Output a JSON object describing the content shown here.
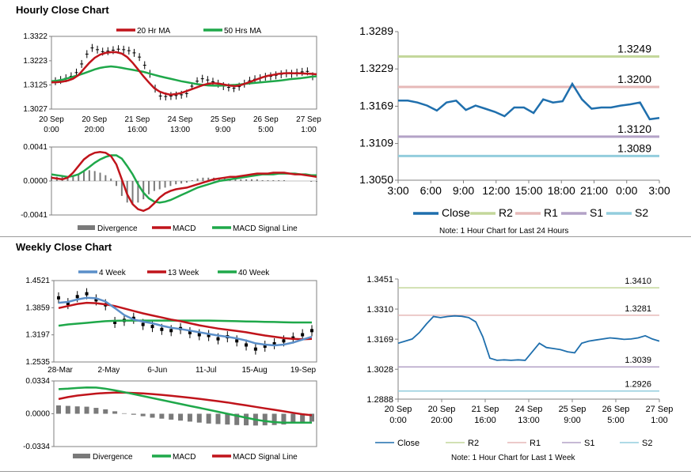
{
  "hourly": {
    "title": "Hourly Close Chart",
    "price": {
      "yticks": [
        "1.3322",
        "1.3223",
        "1.3125",
        "1.3027"
      ],
      "ymin": 1.3027,
      "ymax": 1.3322,
      "xticks": [
        [
          "20 Sep",
          "0:00"
        ],
        [
          "20 Sep",
          "20:00"
        ],
        [
          "21 Sep",
          "16:00"
        ],
        [
          "24 Sep",
          "13:00"
        ],
        [
          "25 Sep",
          "9:00"
        ],
        [
          "26 Sep",
          "5:00"
        ],
        [
          "27 Sep",
          "1:00"
        ]
      ],
      "legend": [
        "20 Hr MA",
        "50 Hrs MA"
      ],
      "colors": {
        "ma20": "#c0141b",
        "ma50": "#1fa84a",
        "candle": "#000000"
      },
      "close": [
        1.314,
        1.3145,
        1.3152,
        1.316,
        1.3175,
        1.321,
        1.325,
        1.3275,
        1.3268,
        1.326,
        1.3262,
        1.3266,
        1.327,
        1.3268,
        1.3264,
        1.3255,
        1.3238,
        1.3205,
        1.317,
        1.311,
        1.308,
        1.3078,
        1.308,
        1.3082,
        1.3085,
        1.309,
        1.312,
        1.314,
        1.315,
        1.3145,
        1.3138,
        1.313,
        1.312,
        1.3115,
        1.3112,
        1.3118,
        1.313,
        1.3142,
        1.3148,
        1.3152,
        1.3158,
        1.316,
        1.3164,
        1.3168,
        1.3172,
        1.317,
        1.3175,
        1.3178,
        1.318,
        1.316
      ],
      "ma20": [
        1.3135,
        1.3136,
        1.3138,
        1.3142,
        1.315,
        1.3165,
        1.319,
        1.3215,
        1.3235,
        1.3248,
        1.3255,
        1.3258,
        1.3258,
        1.3252,
        1.3238,
        1.3215,
        1.3188,
        1.316,
        1.3135,
        1.3112,
        1.3098,
        1.309,
        1.3085,
        1.3088,
        1.3092,
        1.31,
        1.3108,
        1.3116,
        1.3124,
        1.313,
        1.3132,
        1.313,
        1.3126,
        1.3122,
        1.312,
        1.3124,
        1.3132,
        1.314,
        1.3148,
        1.3156,
        1.3162,
        1.3166,
        1.317,
        1.3172,
        1.3173,
        1.3172,
        1.3172,
        1.3171,
        1.317,
        1.3168
      ],
      "ma50": [
        1.314,
        1.3142,
        1.3146,
        1.3152,
        1.3158,
        1.3165,
        1.3172,
        1.318,
        1.3188,
        1.3194,
        1.3198,
        1.32,
        1.3198,
        1.3194,
        1.319,
        1.3186,
        1.3182,
        1.3178,
        1.3172,
        1.3166,
        1.316,
        1.3155,
        1.315,
        1.3145,
        1.314,
        1.3136,
        1.3132,
        1.3128,
        1.3125,
        1.3123,
        1.3122,
        1.3122,
        1.3123,
        1.3124,
        1.3125,
        1.3127,
        1.313,
        1.3132,
        1.3134,
        1.3136,
        1.3138,
        1.314,
        1.3142,
        1.3145,
        1.3148,
        1.315,
        1.3152,
        1.3155,
        1.3158,
        1.316
      ]
    },
    "macd": {
      "yticks": [
        "0.0041",
        "0.0000",
        "-0.0041"
      ],
      "ymin": -0.0041,
      "ymax": 0.0041,
      "legend": [
        "Divergence",
        "MACD",
        "MACD Signal Line"
      ],
      "colors": {
        "divergence": "#7a7a7a",
        "macd": "#c0141b",
        "signal": "#1fa84a"
      },
      "macd": [
        0.0004,
        0.0003,
        0.0002,
        0.0004,
        0.001,
        0.0018,
        0.0026,
        0.0031,
        0.0034,
        0.0035,
        0.0034,
        0.003,
        0.002,
        0.0002,
        -0.0016,
        -0.0028,
        -0.0034,
        -0.0036,
        -0.0033,
        -0.0027,
        -0.002,
        -0.0015,
        -0.0012,
        -0.001,
        -0.0009,
        -0.0008,
        -0.0006,
        -0.0004,
        -0.0002,
        0.0,
        0.0002,
        0.0003,
        0.0004,
        0.0005,
        0.0005,
        0.0006,
        0.0007,
        0.0008,
        0.0009,
        0.0009,
        0.0009,
        0.001,
        0.001,
        0.001,
        0.0009,
        0.0008,
        0.0008,
        0.0007,
        0.0006,
        0.0005
      ],
      "signal": [
        0.0008,
        0.0007,
        0.0006,
        0.0005,
        0.0006,
        0.0008,
        0.0012,
        0.0017,
        0.0022,
        0.0026,
        0.0029,
        0.0031,
        0.0031,
        0.0027,
        0.0018,
        0.0008,
        -0.0004,
        -0.0014,
        -0.0021,
        -0.0025,
        -0.0026,
        -0.0025,
        -0.0023,
        -0.002,
        -0.0017,
        -0.0014,
        -0.0011,
        -0.0008,
        -0.0006,
        -0.0004,
        -0.0002,
        0.0,
        0.0001,
        0.0002,
        0.0003,
        0.0004,
        0.0005,
        0.0006,
        0.0007,
        0.0008,
        0.0008,
        0.0008,
        0.0009,
        0.0009,
        0.0009,
        0.0009,
        0.0008,
        0.0008,
        0.0007,
        0.0007
      ],
      "divergence": [
        0.0006,
        0.0005,
        0.0005,
        0.0004,
        0.0006,
        0.0009,
        0.0012,
        0.0013,
        0.0012,
        0.001,
        0.0007,
        0.0003,
        -0.0006,
        -0.0018,
        -0.0026,
        -0.0028,
        -0.0026,
        -0.0022,
        -0.0016,
        -0.0012,
        -0.001,
        -0.0008,
        -0.0006,
        -0.0004,
        -0.0003,
        -0.0002,
        0.0001,
        0.0003,
        0.0004,
        0.0004,
        0.0004,
        0.0004,
        0.0004,
        0.0003,
        0.0003,
        0.0002,
        0.0002,
        0.0002,
        0.0002,
        0.0001,
        0.0001,
        0.0001,
        0.0001,
        0.0001,
        0.0,
        0.0,
        0.0,
        0.0,
        -0.0001,
        -0.0001
      ]
    },
    "levels": {
      "yticks": [
        "1.3289",
        "1.3229",
        "1.3169",
        "1.3109",
        "1.3050"
      ],
      "ymin": 1.305,
      "ymax": 1.3289,
      "xticks": [
        "3:00",
        "6:00",
        "9:00",
        "12:00",
        "15:00",
        "18:00",
        "21:00",
        "0:00",
        "3:00"
      ],
      "lines": {
        "R2": 1.3249,
        "R1": 1.32,
        "S1": 1.312,
        "S2": 1.3089
      },
      "line_labels": {
        "R2": "1.3249",
        "R1": "1.3200",
        "S1": "1.3120",
        "S2": "1.3089"
      },
      "legend": [
        "Close",
        "R2",
        "R1",
        "S1",
        "S2"
      ],
      "colors": {
        "close": "#1f6fad",
        "R2": "#c4d79b",
        "R1": "#e6b9b8",
        "S1": "#b3a2c7",
        "S2": "#93cddd"
      },
      "close": [
        1.3178,
        1.3178,
        1.3175,
        1.317,
        1.3162,
        1.3175,
        1.3178,
        1.3163,
        1.317,
        1.3165,
        1.316,
        1.3153,
        1.3167,
        1.3167,
        1.3158,
        1.318,
        1.3175,
        1.3177,
        1.3205,
        1.318,
        1.3165,
        1.3167,
        1.3167,
        1.317,
        1.3172,
        1.3175,
        1.3148,
        1.315
      ],
      "note": "Note: 1 Hour Chart for Last 24 Hours"
    }
  },
  "weekly": {
    "title": "Weekly Close Chart",
    "price": {
      "yticks": [
        "1.4521",
        "1.3859",
        "1.3197",
        "1.2535"
      ],
      "ymin": 1.2535,
      "ymax": 1.4521,
      "xticks": [
        "28-Mar",
        "2-May",
        "6-Jun",
        "11-Jul",
        "15-Aug",
        "19-Sep"
      ],
      "legend": [
        "4 Week",
        "13 Week",
        "40 Week"
      ],
      "colors": {
        "w4": "#5b8fc9",
        "w13": "#c0141b",
        "w40": "#1fa84a",
        "bar": "#000000"
      },
      "close": [
        1.41,
        1.396,
        1.413,
        1.42,
        1.405,
        1.393,
        1.35,
        1.355,
        1.36,
        1.345,
        1.34,
        1.333,
        1.33,
        1.335,
        1.325,
        1.32,
        1.318,
        1.31,
        1.315,
        1.305,
        1.295,
        1.285,
        1.292,
        1.298,
        1.305,
        1.312,
        1.32,
        1.33
      ],
      "w4": [
        1.398,
        1.4,
        1.406,
        1.41,
        1.409,
        1.401,
        1.385,
        1.368,
        1.357,
        1.352,
        1.348,
        1.342,
        1.337,
        1.334,
        1.33,
        1.326,
        1.322,
        1.318,
        1.315,
        1.311,
        1.306,
        1.299,
        1.296,
        1.294,
        1.296,
        1.301,
        1.308,
        1.315
      ],
      "w13": [
        1.385,
        1.39,
        1.395,
        1.398,
        1.397,
        1.394,
        1.39,
        1.384,
        1.378,
        1.372,
        1.367,
        1.362,
        1.357,
        1.353,
        1.348,
        1.343,
        1.339,
        1.335,
        1.332,
        1.329,
        1.326,
        1.322,
        1.318,
        1.315,
        1.312,
        1.31,
        1.309,
        1.31
      ],
      "w40": [
        1.342,
        1.345,
        1.347,
        1.349,
        1.351,
        1.353,
        1.354,
        1.3545,
        1.3545,
        1.3545,
        1.3545,
        1.3545,
        1.3545,
        1.3545,
        1.3545,
        1.3545,
        1.3545,
        1.354,
        1.3535,
        1.353,
        1.3525,
        1.352,
        1.3515,
        1.351,
        1.3505,
        1.35,
        1.35,
        1.35
      ]
    },
    "macd": {
      "yticks": [
        "0.0334",
        "0.0000",
        "-0.0334"
      ],
      "ymin": -0.0334,
      "ymax": 0.0334,
      "legend": [
        "Divergence",
        "MACD",
        "MACD Signal Line"
      ],
      "colors": {
        "divergence": "#7a7a7a",
        "macd": "#1fa84a",
        "signal": "#c0141b"
      },
      "macd": [
        0.025,
        0.0255,
        0.0262,
        0.0268,
        0.0266,
        0.0255,
        0.0238,
        0.022,
        0.02,
        0.018,
        0.016,
        0.014,
        0.012,
        0.01,
        0.008,
        0.006,
        0.004,
        0.002,
        0.0,
        -0.002,
        -0.004,
        -0.006,
        -0.0075,
        -0.0085,
        -0.009,
        -0.009,
        -0.009,
        -0.009
      ],
      "signal": [
        0.015,
        0.017,
        0.0185,
        0.0195,
        0.0205,
        0.0212,
        0.0215,
        0.0215,
        0.0212,
        0.0207,
        0.02,
        0.0192,
        0.0183,
        0.0173,
        0.0163,
        0.0152,
        0.014,
        0.0128,
        0.0115,
        0.01,
        0.0085,
        0.007,
        0.0055,
        0.004,
        0.0025,
        0.001,
        -0.0005,
        -0.0015
      ],
      "divergence": [
        0.0085,
        0.008,
        0.0075,
        0.0072,
        0.006,
        0.0045,
        0.0025,
        0.0005,
        -0.001,
        -0.0025,
        -0.004,
        -0.005,
        -0.006,
        -0.007,
        -0.008,
        -0.009,
        -0.01,
        -0.0105,
        -0.011,
        -0.0115,
        -0.0118,
        -0.012,
        -0.0118,
        -0.0115,
        -0.011,
        -0.01,
        -0.009,
        -0.008
      ]
    },
    "levels": {
      "yticks": [
        "1.3451",
        "1.3310",
        "1.3169",
        "1.3028",
        "1.2888"
      ],
      "ymin": 1.2888,
      "ymax": 1.3451,
      "xticks": [
        [
          "20 Sep",
          "0:00"
        ],
        [
          "20 Sep",
          "20:00"
        ],
        [
          "21 Sep",
          "16:00"
        ],
        [
          "24 Sep",
          "13:00"
        ],
        [
          "25 Sep",
          "9:00"
        ],
        [
          "26 Sep",
          "5:00"
        ],
        [
          "27 Sep",
          "1:00"
        ]
      ],
      "lines": {
        "R2": 1.341,
        "R1": 1.3281,
        "S1": 1.3039,
        "S2": 1.2926
      },
      "line_labels": {
        "R2": "1.3410",
        "R1": "1.3281",
        "S1": "1.3039",
        "S2": "1.2926"
      },
      "legend": [
        "Close",
        "R2",
        "R1",
        "S1",
        "S2"
      ],
      "colors": {
        "close": "#1f6fad",
        "R2": "#c4d79b",
        "R1": "#e6b9b8",
        "S1": "#b3a2c7",
        "S2": "#93cddd"
      },
      "close": [
        1.315,
        1.316,
        1.317,
        1.32,
        1.324,
        1.3275,
        1.327,
        1.3275,
        1.3278,
        1.3276,
        1.327,
        1.325,
        1.318,
        1.308,
        1.307,
        1.3072,
        1.307,
        1.3072,
        1.307,
        1.311,
        1.315,
        1.313,
        1.3125,
        1.312,
        1.311,
        1.3105,
        1.315,
        1.316,
        1.3165,
        1.317,
        1.3175,
        1.3172,
        1.3168,
        1.317,
        1.3175,
        1.3185,
        1.317,
        1.316
      ],
      "note": "Note: 1 Hour Chart for Last 1 Week"
    }
  }
}
